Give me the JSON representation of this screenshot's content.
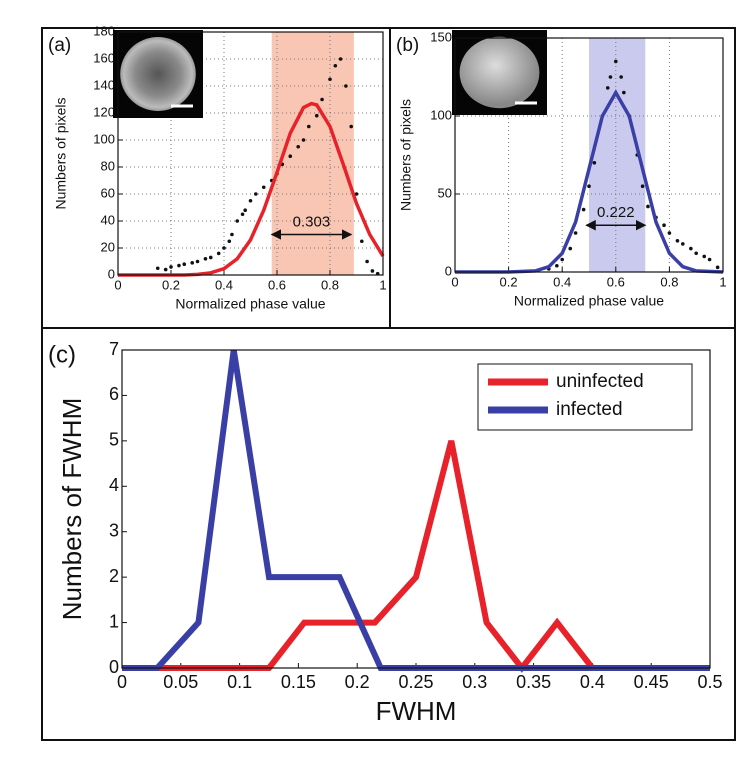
{
  "chart_data": [
    {
      "type": "scatter",
      "label": "(a)",
      "xlabel": "Normalized phase value",
      "ylabel": "Numbers of pixels",
      "xlim": [
        0,
        1
      ],
      "xticks": [
        0,
        0.2,
        0.4,
        0.6,
        0.8,
        1
      ],
      "ylim": [
        0,
        180
      ],
      "yticks": [
        0,
        20,
        40,
        60,
        80,
        100,
        120,
        140,
        160,
        180
      ],
      "grid": true,
      "band": {
        "x": [
          0.58,
          0.89
        ],
        "color": "#f9c6b4"
      },
      "points": {
        "color": "#111111",
        "x": [
          0.15,
          0.18,
          0.2,
          0.23,
          0.25,
          0.28,
          0.3,
          0.33,
          0.35,
          0.38,
          0.4,
          0.42,
          0.43,
          0.45,
          0.47,
          0.48,
          0.5,
          0.52,
          0.55,
          0.58,
          0.6,
          0.62,
          0.65,
          0.68,
          0.7,
          0.72,
          0.75,
          0.77,
          0.8,
          0.82,
          0.84,
          0.86,
          0.88,
          0.9,
          0.92,
          0.94,
          0.96,
          0.98
        ],
        "y": [
          5,
          4,
          6,
          7,
          8,
          9,
          10,
          12,
          13,
          16,
          20,
          25,
          30,
          40,
          45,
          48,
          55,
          60,
          65,
          70,
          75,
          82,
          88,
          95,
          100,
          110,
          118,
          130,
          145,
          155,
          160,
          140,
          110,
          60,
          25,
          10,
          3,
          1
        ]
      },
      "fit": {
        "color": "#e8222a",
        "x": [
          0,
          0.1,
          0.2,
          0.25,
          0.3,
          0.35,
          0.4,
          0.45,
          0.5,
          0.55,
          0.6,
          0.65,
          0.7,
          0.73,
          0.75,
          0.8,
          0.85,
          0.9,
          0.95,
          1
        ],
        "y": [
          0,
          0,
          0,
          0,
          0.5,
          1.6,
          4.7,
          12,
          26,
          48,
          76,
          105,
          124,
          127,
          126,
          110,
          82,
          53,
          30,
          14
        ]
      },
      "annotation": {
        "text": "0.303",
        "x": [
          0.58,
          0.88
        ],
        "y": 30
      }
    },
    {
      "type": "scatter",
      "label": "(b)",
      "xlabel": "Normalized phase value",
      "ylabel": "Numbers of pixels",
      "xlim": [
        0,
        1
      ],
      "xticks": [
        0,
        0.2,
        0.4,
        0.6,
        0.8,
        1
      ],
      "ylim": [
        0,
        150
      ],
      "yticks": [
        0,
        50,
        100,
        150
      ],
      "grid": true,
      "band": {
        "x": [
          0.5,
          0.71
        ],
        "color": "#cacaee"
      },
      "points": {
        "color": "#111111",
        "x": [
          0.35,
          0.38,
          0.4,
          0.43,
          0.45,
          0.48,
          0.5,
          0.52,
          0.55,
          0.57,
          0.58,
          0.6,
          0.62,
          0.63,
          0.65,
          0.68,
          0.7,
          0.72,
          0.75,
          0.78,
          0.8,
          0.83,
          0.85,
          0.88,
          0.9,
          0.93,
          0.95,
          0.98
        ],
        "y": [
          2,
          4,
          8,
          15,
          25,
          40,
          55,
          70,
          100,
          118,
          125,
          135,
          125,
          115,
          100,
          75,
          55,
          42,
          35,
          30,
          25,
          20,
          18,
          15,
          12,
          10,
          8,
          3
        ]
      },
      "fit": {
        "color": "#3a3fa6",
        "x": [
          0,
          0.2,
          0.3,
          0.35,
          0.4,
          0.45,
          0.5,
          0.55,
          0.6,
          0.65,
          0.7,
          0.75,
          0.8,
          0.85,
          0.9,
          1
        ],
        "y": [
          0,
          0,
          0.7,
          3.4,
          12,
          32,
          66,
          100,
          115,
          100,
          66,
          32,
          12,
          3.4,
          0.7,
          0
        ]
      },
      "annotation": {
        "text": "0.222",
        "x": [
          0.49,
          0.71
        ],
        "y": 30
      }
    },
    {
      "type": "line",
      "label": "(c)",
      "xlabel": "FWHM",
      "ylabel": "Numbers of FWHM",
      "xlim": [
        0,
        0.5
      ],
      "xticks": [
        0,
        0.05,
        0.1,
        0.15,
        0.2,
        0.25,
        0.3,
        0.35,
        0.4,
        0.45,
        0.5
      ],
      "ylim": [
        0,
        7
      ],
      "yticks": [
        0,
        1,
        2,
        3,
        4,
        5,
        6,
        7
      ],
      "grid": false,
      "series": [
        {
          "name": "uninfected",
          "color": "#e8222a",
          "x": [
            0,
            0.03,
            0.06,
            0.09,
            0.125,
            0.155,
            0.185,
            0.215,
            0.25,
            0.28,
            0.31,
            0.34,
            0.37,
            0.4,
            0.5
          ],
          "values": [
            0,
            0,
            0,
            0,
            0,
            1,
            1,
            1,
            2,
            5,
            1,
            0,
            1,
            0,
            0
          ]
        },
        {
          "name": "infected",
          "color": "#3a3fa6",
          "x": [
            0,
            0.03,
            0.065,
            0.095,
            0.125,
            0.155,
            0.185,
            0.22,
            0.5
          ],
          "values": [
            0,
            0,
            1,
            7,
            2,
            2,
            2,
            0,
            0
          ]
        }
      ]
    }
  ]
}
